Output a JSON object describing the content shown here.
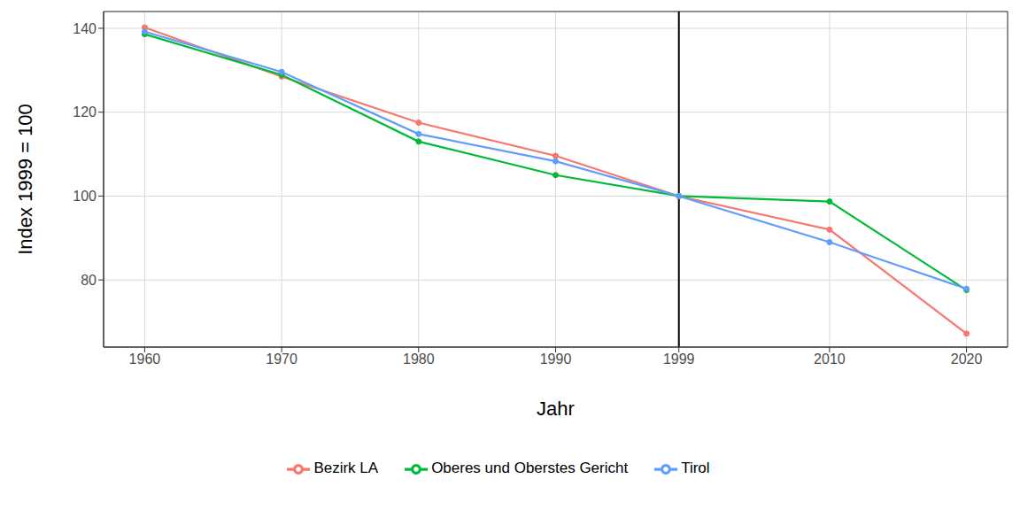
{
  "chart_data": {
    "type": "line",
    "x_label": "Jahr",
    "y_label": "Index 1999 = 100",
    "x": [
      1960,
      1970,
      1980,
      1990,
      1999,
      2010,
      2020
    ],
    "series": [
      {
        "name": "Bezirk LA",
        "color": "#F8766D",
        "values": [
          140.2,
          128.5,
          117.5,
          109.6,
          100,
          92.0,
          67.2
        ]
      },
      {
        "name": "Oberes und Oberstes Gericht",
        "color": "#00BA38",
        "values": [
          138.6,
          128.9,
          113.0,
          105.0,
          100,
          98.7,
          77.6
        ]
      },
      {
        "name": "Tirol",
        "color": "#619CFF",
        "values": [
          139.2,
          129.6,
          114.8,
          108.3,
          100,
          89.0,
          77.9
        ]
      }
    ],
    "xlim": [
      1957,
      2023
    ],
    "xticks": [
      1960,
      1970,
      1980,
      1990,
      1999,
      2010,
      2020
    ],
    "ylim": [
      64,
      144
    ],
    "yticks": [
      80,
      100,
      120,
      140
    ],
    "vlines": [
      1999
    ],
    "grid": true,
    "legend": "bottom",
    "marker": "circle",
    "line_style": "solid"
  }
}
